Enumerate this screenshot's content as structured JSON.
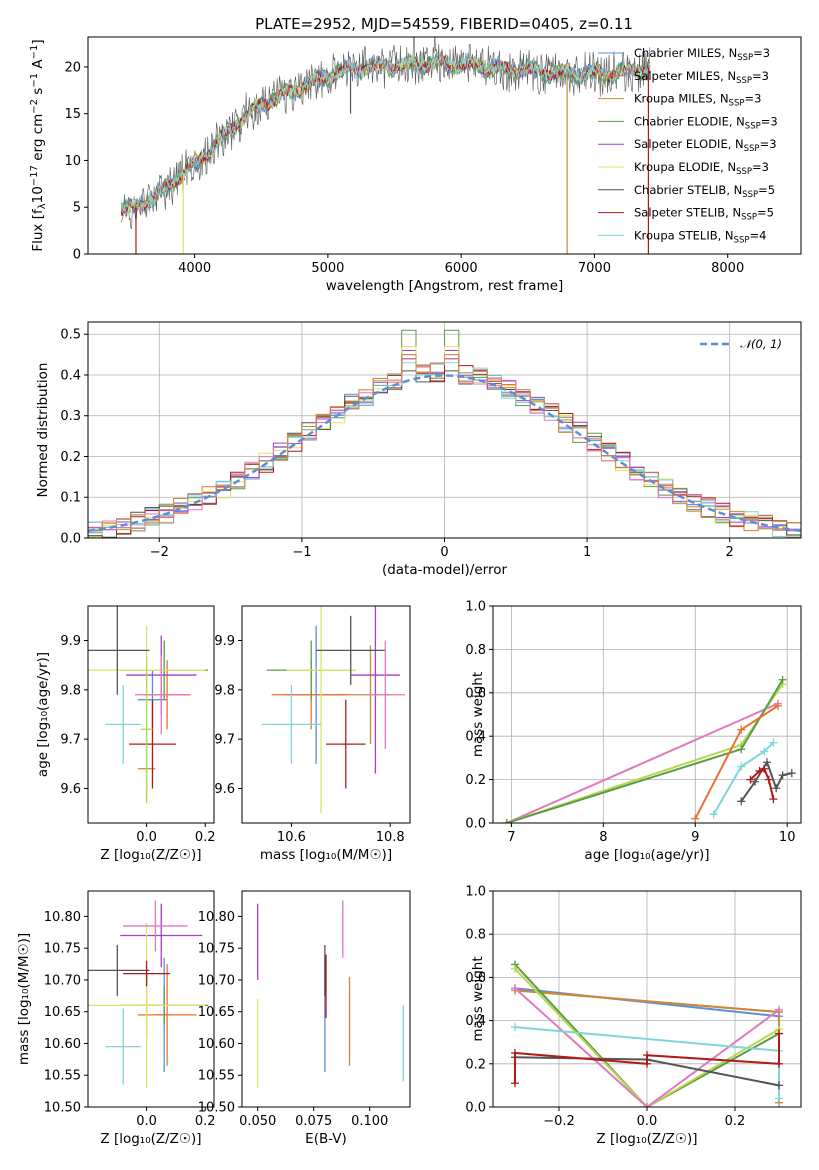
{
  "title": "PLATE=2952, MJD=54559, FIBERID=0405, z=0.11",
  "colors": {
    "Chabrier MILES": "#5b8fd6",
    "Salpeter MILES": "#e8722f",
    "Kroupa MILES": "#c98a3c",
    "Chabrier ELODIE": "#5c9a4a",
    "Salpeter ELODIE": "#a93ec6",
    "Kroupa ELODIE": "#dfe36a",
    "Chabrier STELIB": "#555555",
    "Salpeter STELIB": "#b01a1a",
    "Kroupa STELIB": "#7dd6d8",
    "pink": "#e478be",
    "lime": "#b7d84a",
    "normal": "#5b8fd6"
  },
  "legend_spectrum": [
    {
      "text": "Chabrier MILES, N",
      "sub": "SSP",
      "tail": "=3",
      "series": "Chabrier MILES"
    },
    {
      "text": "Salpeter MILES, N",
      "sub": "SSP",
      "tail": "=3",
      "series": "Salpeter MILES"
    },
    {
      "text": "Kroupa MILES, N",
      "sub": "SSP",
      "tail": "=3",
      "series": "Kroupa MILES"
    },
    {
      "text": "Chabrier ELODIE, N",
      "sub": "SSP",
      "tail": "=3",
      "series": "Chabrier ELODIE"
    },
    {
      "text": "Salpeter ELODIE, N",
      "sub": "SSP",
      "tail": "=3",
      "series": "Salpeter ELODIE"
    },
    {
      "text": "Kroupa ELODIE, N",
      "sub": "SSP",
      "tail": "=3",
      "series": "Kroupa ELODIE"
    },
    {
      "text": "Chabrier STELIB, N",
      "sub": "SSP",
      "tail": "=5",
      "series": "Chabrier STELIB"
    },
    {
      "text": "Salpeter STELIB, N",
      "sub": "SSP",
      "tail": "=5",
      "series": "Salpeter STELIB"
    },
    {
      "text": "Kroupa STELIB, N",
      "sub": "SSP",
      "tail": "=4",
      "series": "Kroupa STELIB"
    }
  ],
  "chart_data": [
    {
      "id": "spectrum",
      "type": "line",
      "xlabel": "wavelength [Angstrom, rest frame]",
      "ylabel_parts": [
        "Flux [f",
        "λ",
        "10",
        "−17",
        " erg cm",
        "−2",
        " s",
        "−1",
        " A",
        "−1",
        "]"
      ],
      "xlim": [
        3200,
        8550
      ],
      "ylim": [
        0,
        23.2
      ],
      "xticks": [
        4000,
        5000,
        6000,
        7000,
        8000
      ],
      "yticks": [
        0,
        5,
        10,
        15,
        20
      ],
      "continuum_x": [
        3450,
        3700,
        3900,
        4100,
        4300,
        4500,
        4700,
        4900,
        5100,
        5300,
        5500,
        5700,
        5900,
        6100,
        6300,
        6500,
        6700,
        6900,
        7100,
        7300,
        7420
      ],
      "continuum_y": [
        4.5,
        6.0,
        8.5,
        10.8,
        13.8,
        16.0,
        17.2,
        18.5,
        19.5,
        20.0,
        20.2,
        20.3,
        20.4,
        20.2,
        19.8,
        19.6,
        19.4,
        19.3,
        19.3,
        19.5,
        20.0
      ],
      "dips": [
        {
          "x": 3560,
          "y": 0.0,
          "series": "Salpeter STELIB"
        },
        {
          "x": 3915,
          "y": 0.0,
          "series": "Kroupa ELODIE"
        },
        {
          "x": 4340,
          "y": 12.0,
          "series": "Chabrier STELIB"
        },
        {
          "x": 5170,
          "y": 15.0,
          "series": "Chabrier STELIB"
        },
        {
          "x": 6795,
          "y": 0.0,
          "series": "Kroupa MILES"
        },
        {
          "x": 7405,
          "y": 0.0,
          "series": "Salpeter STELIB"
        }
      ]
    },
    {
      "id": "residuals",
      "type": "line",
      "xlabel": "(data-model)/error",
      "ylabel": "Normed distribution",
      "xlim": [
        -2.5,
        2.5
      ],
      "ylim": [
        0,
        0.53
      ],
      "xticks": [
        -2,
        -1,
        0,
        1,
        2
      ],
      "yticks": [
        0.0,
        0.1,
        0.2,
        0.3,
        0.4,
        0.5
      ],
      "grid": true,
      "legend": "𝒩(0, 1)",
      "bin_width": 0.1,
      "bin_start": -2.5,
      "peak_values": [
        0.45,
        0.44,
        0.51,
        0.46,
        0.47,
        0.41,
        0.44,
        0.43,
        0.44
      ]
    },
    {
      "id": "age-vs-Z",
      "type": "scatter",
      "xlabel": "Z [log₁₀(Z/Z☉)]",
      "ylabel": "age  [log₁₀(age/yr)]",
      "xlim": [
        -0.2,
        0.23
      ],
      "ylim": [
        9.53,
        9.97
      ],
      "xticks": [
        0.0,
        0.2
      ],
      "yticks": [
        9.6,
        9.7,
        9.8,
        9.9
      ],
      "points": [
        {
          "series": "Chabrier MILES",
          "x": 0.02,
          "xerr": 0.05,
          "y": 9.78,
          "yerr": 0.06
        },
        {
          "series": "Salpeter MILES",
          "x": 0.07,
          "xerr": 0.08,
          "y": 9.79,
          "yerr": 0.07
        },
        {
          "series": "Kroupa MILES",
          "x": 0.0,
          "xerr": 0.03,
          "y": 9.64,
          "yerr": 0.06
        },
        {
          "series": "Chabrier ELODIE",
          "x": 0.06,
          "xerr": 0.15,
          "y": 9.84,
          "yerr": 0.06
        },
        {
          "series": "Salpeter ELODIE",
          "x": 0.05,
          "xerr": 0.12,
          "y": 9.83,
          "yerr": 0.08
        },
        {
          "series": "Kroupa ELODIE",
          "x": 0.0,
          "xerr": 0.2,
          "y": 9.84,
          "yerr": 0.09
        },
        {
          "series": "Chabrier STELIB",
          "x": -0.1,
          "xerr": 0.11,
          "y": 9.88,
          "yerr": 0.09
        },
        {
          "series": "Salpeter STELIB",
          "x": 0.02,
          "xerr": 0.08,
          "y": 9.69,
          "yerr": 0.09
        },
        {
          "series": "Kroupa STELIB",
          "x": -0.08,
          "xerr": 0.06,
          "y": 9.73,
          "yerr": 0.08
        },
        {
          "series": "pink",
          "x": 0.05,
          "xerr": 0.09,
          "y": 9.79,
          "yerr": 0.08
        },
        {
          "series": "lime",
          "x": 0.0,
          "xerr": 0.02,
          "y": 9.72,
          "yerr": 0.15
        }
      ]
    },
    {
      "id": "age-vs-mass",
      "type": "scatter",
      "xlabel": "mass [log₁₀(M/M☉)]",
      "xlim": [
        10.5,
        10.84
      ],
      "ylim": [
        9.53,
        9.97
      ],
      "xticks": [
        10.6,
        10.8
      ],
      "yticks": [
        9.6,
        9.7,
        9.8,
        9.9
      ],
      "points": [
        {
          "series": "Chabrier MILES",
          "x": 10.65,
          "xerr": 0.06,
          "y": 9.79,
          "yerr": 0.14
        },
        {
          "series": "Salpeter MILES",
          "x": 10.64,
          "xerr": 0.08,
          "y": 9.79,
          "yerr": 0.07
        },
        {
          "series": "Kroupa MILES",
          "x": 10.76,
          "xerr": 0.04,
          "y": 9.79,
          "yerr": 0.1
        },
        {
          "series": "Chabrier ELODIE",
          "x": 10.64,
          "xerr": 0.09,
          "y": 9.84,
          "yerr": 0.06
        },
        {
          "series": "Salpeter ELODIE",
          "x": 10.77,
          "xerr": 0.05,
          "y": 9.83,
          "yerr": 0.2
        },
        {
          "series": "Kroupa ELODIE",
          "x": 10.66,
          "xerr": 0.07,
          "y": 9.84,
          "yerr": 0.29
        },
        {
          "series": "Chabrier STELIB",
          "x": 10.72,
          "xerr": 0.07,
          "y": 9.88,
          "yerr": 0.07
        },
        {
          "series": "Salpeter STELIB",
          "x": 10.71,
          "xerr": 0.04,
          "y": 9.69,
          "yerr": 0.09
        },
        {
          "series": "Kroupa STELIB",
          "x": 10.6,
          "xerr": 0.06,
          "y": 9.73,
          "yerr": 0.08
        },
        {
          "series": "pink",
          "x": 10.79,
          "xerr": 0.04,
          "y": 9.79,
          "yerr": 0.11
        }
      ]
    },
    {
      "id": "weight-vs-age",
      "type": "line",
      "xlabel": "age  [log₁₀(age/yr)]",
      "ylabel": "mass weight",
      "xlim": [
        6.8,
        10.15
      ],
      "ylim": [
        0,
        1
      ],
      "xticks": [
        7,
        8,
        9,
        10
      ],
      "yticks": [
        0.0,
        0.2,
        0.4,
        0.6,
        0.8,
        1.0
      ],
      "grid": true,
      "series": [
        {
          "series": "pink",
          "x": [
            6.95,
            9.9
          ],
          "y": [
            0.0,
            0.55
          ]
        },
        {
          "series": "lime",
          "x": [
            6.95,
            9.5,
            9.95
          ],
          "y": [
            0.0,
            0.36,
            0.64
          ]
        },
        {
          "series": "Chabrier ELODIE",
          "x": [
            6.95,
            9.5,
            9.95
          ],
          "y": [
            0.0,
            0.34,
            0.66
          ]
        },
        {
          "series": "Salpeter MILES",
          "x": [
            9.0,
            9.5,
            9.9
          ],
          "y": [
            0.02,
            0.43,
            0.54
          ]
        },
        {
          "series": "Kroupa STELIB",
          "x": [
            9.2,
            9.5,
            9.75,
            9.85
          ],
          "y": [
            0.04,
            0.26,
            0.33,
            0.37
          ]
        },
        {
          "series": "Chabrier STELIB",
          "x": [
            9.5,
            9.65,
            9.78,
            9.88,
            9.95,
            10.05
          ],
          "y": [
            0.1,
            0.19,
            0.28,
            0.16,
            0.22,
            0.23
          ]
        },
        {
          "series": "Salpeter STELIB",
          "x": [
            9.6,
            9.7,
            9.75,
            9.8,
            9.85
          ],
          "y": [
            0.2,
            0.24,
            0.25,
            0.2,
            0.11
          ]
        }
      ]
    },
    {
      "id": "mass-vs-Z",
      "type": "scatter",
      "xlabel": "Z [log₁₀(Z/Z☉)]",
      "ylabel": "mass [log₁₀(M/M☉)]",
      "xlim": [
        -0.2,
        0.23
      ],
      "ylim": [
        10.5,
        10.84
      ],
      "xticks": [
        0.0,
        0.2
      ],
      "yticks": [
        10.5,
        10.55,
        10.6,
        10.65,
        10.7,
        10.75,
        10.8
      ],
      "points": [
        {
          "series": "Chabrier MILES",
          "x": 0.06,
          "xerr": 0.03,
          "y": 10.645,
          "yerr": 0.09
        },
        {
          "series": "Salpeter MILES",
          "x": 0.07,
          "xerr": 0.1,
          "y": 10.645,
          "yerr": 0.08
        },
        {
          "series": "Kroupa MILES",
          "x": 0.0,
          "xerr": 0.05,
          "y": 10.66,
          "yerr": 0.05
        },
        {
          "series": "Chabrier ELODIE",
          "x": 0.06,
          "xerr": 0.15,
          "y": 10.66,
          "yerr": 0.03
        },
        {
          "series": "Salpeter ELODIE",
          "x": 0.05,
          "xerr": 0.14,
          "y": 10.77,
          "yerr": 0.05
        },
        {
          "series": "Kroupa ELODIE",
          "x": 0.0,
          "xerr": 0.2,
          "y": 10.66,
          "yerr": 0.13
        },
        {
          "series": "Chabrier STELIB",
          "x": -0.1,
          "xerr": 0.11,
          "y": 10.715,
          "yerr": 0.04
        },
        {
          "series": "Salpeter STELIB",
          "x": 0.0,
          "xerr": 0.08,
          "y": 10.71,
          "yerr": 0.02
        },
        {
          "series": "Kroupa STELIB",
          "x": -0.08,
          "xerr": 0.06,
          "y": 10.595,
          "yerr": 0.06
        },
        {
          "series": "pink",
          "x": 0.03,
          "xerr": 0.11,
          "y": 10.785,
          "yerr": 0.04
        }
      ]
    },
    {
      "id": "mass-vs-EBV",
      "type": "scatter",
      "xlabel": "E(B-V)",
      "xlim": [
        0.043,
        0.118
      ],
      "ylim": [
        10.5,
        10.84
      ],
      "xticks": [
        0.05,
        0.075,
        0.1
      ],
      "xtick_labels": [
        "0.050",
        "0.075",
        "0.100"
      ],
      "yticks": [
        10.5,
        10.55,
        10.6,
        10.65,
        10.7,
        10.75,
        10.8
      ],
      "points": [
        {
          "series": "Salpeter ELODIE",
          "x": 0.05,
          "y": 10.76,
          "yerr": 0.06
        },
        {
          "series": "Kroupa ELODIE",
          "x": 0.05,
          "y": 10.6,
          "yerr": 0.07
        },
        {
          "series": "Chabrier MILES",
          "x": 0.08,
          "y": 10.645,
          "yerr": 0.09
        },
        {
          "series": "Chabrier STELIB",
          "x": 0.08,
          "y": 10.715,
          "yerr": 0.04
        },
        {
          "series": "Salpeter STELIB",
          "x": 0.0805,
          "y": 10.69,
          "yerr": 0.05
        },
        {
          "series": "pink",
          "x": 0.088,
          "y": 10.78,
          "yerr": 0.045
        },
        {
          "series": "Kroupa MILES",
          "x": 0.091,
          "y": 10.635,
          "yerr": 0.07
        },
        {
          "series": "Kroupa STELIB",
          "x": 0.115,
          "y": 10.6,
          "yerr": 0.06
        }
      ]
    },
    {
      "id": "weight-vs-Z",
      "type": "line",
      "xlabel": "Z [log₁₀(Z/Z☉)]",
      "ylabel": "mass weight",
      "xlim": [
        -0.35,
        0.35
      ],
      "ylim": [
        0,
        1
      ],
      "xticks": [
        -0.2,
        0.0,
        0.2
      ],
      "yticks": [
        0.0,
        0.2,
        0.4,
        0.6,
        0.8,
        1.0
      ],
      "grid": true,
      "series": [
        {
          "series": "Chabrier MILES",
          "x": [
            -0.3,
            0.3
          ],
          "y": [
            0.55,
            0.42
          ]
        },
        {
          "series": "Salpeter MILES",
          "x": [
            -0.3,
            0.3
          ],
          "y": [
            0.54,
            0.44
          ]
        },
        {
          "series": "Kroupa MILES",
          "x": [
            -0.3,
            0.3,
            0.3
          ],
          "y": [
            0.54,
            0.44,
            0.02
          ]
        },
        {
          "series": "Chabrier ELODIE",
          "x": [
            -0.3,
            0.0,
            0.3
          ],
          "y": [
            0.66,
            0.0,
            0.34
          ]
        },
        {
          "series": "lime",
          "x": [
            -0.3,
            0.0,
            0.3
          ],
          "y": [
            0.64,
            0.0,
            0.36
          ]
        },
        {
          "series": "pink",
          "x": [
            -0.3,
            0.0,
            0.3
          ],
          "y": [
            0.55,
            0.0,
            0.45
          ]
        },
        {
          "series": "Kroupa STELIB",
          "x": [
            -0.3,
            0.3,
            0.3
          ],
          "y": [
            0.37,
            0.26,
            0.04
          ]
        },
        {
          "series": "Chabrier STELIB",
          "x": [
            -0.3,
            0.0,
            0.3
          ],
          "y": [
            0.23,
            0.22,
            0.1
          ]
        },
        {
          "series": "Salpeter STELIB",
          "x": [
            -0.3,
            -0.3,
            0.0,
            0.0,
            0.3,
            0.3
          ],
          "y": [
            0.11,
            0.25,
            0.2,
            0.24,
            0.2,
            0.34
          ]
        }
      ]
    }
  ]
}
